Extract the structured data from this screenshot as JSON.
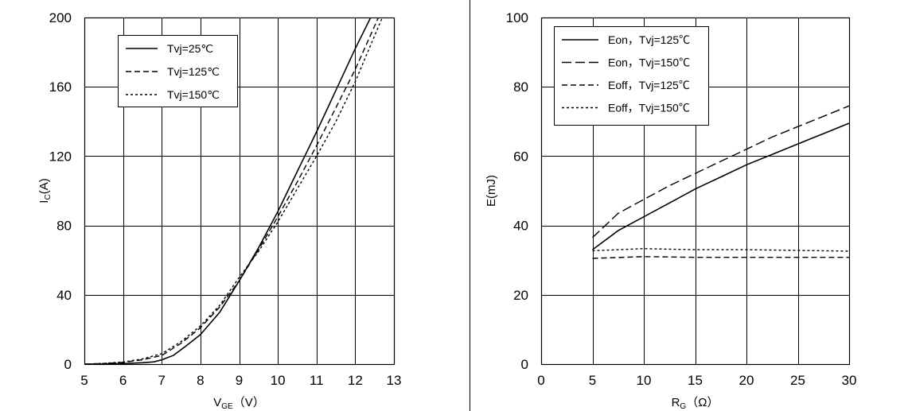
{
  "chart_data": [
    {
      "type": "line",
      "xlabel": "VGE（V）",
      "xlabel_main": "V",
      "xlabel_sub": "GE",
      "xlabel_unit": "（V）",
      "ylabel": "Ic(A)",
      "ylabel_main": "I",
      "ylabel_sub": "C",
      "ylabel_unit": "(A)",
      "xlim": [
        5,
        13
      ],
      "ylim": [
        0,
        200
      ],
      "xticks": [
        5,
        6,
        7,
        8,
        9,
        10,
        11,
        12,
        13
      ],
      "yticks": [
        0,
        40,
        80,
        120,
        160,
        200
      ],
      "grid": true,
      "legend_position": "top-left",
      "series": [
        {
          "name": "Tvj=25℃",
          "dash": "solid",
          "x": [
            5,
            5.5,
            6,
            6.5,
            6.8,
            7,
            7.3,
            7.6,
            8,
            8.5,
            9,
            9.5,
            10,
            10.5,
            11,
            11.5,
            12,
            12.4
          ],
          "y": [
            0,
            0,
            0.3,
            0.8,
            1.3,
            2.5,
            5,
            10,
            17,
            30,
            48,
            67,
            88,
            111,
            134,
            158,
            182,
            200
          ]
        },
        {
          "name": "Tvj=125℃",
          "dash": "dash",
          "x": [
            5,
            5.5,
            6,
            6.5,
            7,
            7.5,
            8,
            8.5,
            9,
            9.5,
            10,
            10.5,
            11,
            11.5,
            12,
            12.6
          ],
          "y": [
            0,
            0.3,
            1,
            2.5,
            5,
            12,
            21,
            33,
            48,
            66,
            85,
            105,
            126,
            148,
            170,
            200
          ]
        },
        {
          "name": "Tvj=150℃",
          "dash": "dot",
          "x": [
            5,
            5.5,
            6,
            6.5,
            7,
            7.5,
            8,
            8.5,
            9,
            9.5,
            10,
            10.5,
            11,
            11.5,
            12,
            12.7
          ],
          "y": [
            0,
            0.4,
            1.2,
            3,
            6,
            13,
            22,
            34,
            50,
            65,
            82,
            101,
            120,
            140,
            163,
            200
          ]
        }
      ]
    },
    {
      "type": "line",
      "xlabel": "RG（Ω）",
      "xlabel_main": "R",
      "xlabel_sub": "G",
      "xlabel_unit": "（Ω）",
      "ylabel": "E(mJ)",
      "xlim": [
        0,
        30
      ],
      "ylim": [
        0,
        100
      ],
      "xticks": [
        0,
        5,
        10,
        15,
        20,
        25,
        30
      ],
      "yticks": [
        0,
        20,
        40,
        60,
        80,
        100
      ],
      "grid": true,
      "legend_position": "top-left",
      "series": [
        {
          "name": "Eon，Tvj=125℃",
          "dash": "solid",
          "x": [
            5,
            7.5,
            10,
            12.5,
            15,
            17.5,
            20,
            22.5,
            25,
            27.5,
            30
          ],
          "y": [
            33,
            38.5,
            42.5,
            46.5,
            50.5,
            54,
            57.5,
            60.5,
            63.5,
            66.5,
            69.5
          ]
        },
        {
          "name": "Eon，Tvj=150℃",
          "dash": "longdash",
          "x": [
            5,
            7.5,
            10,
            12.5,
            15,
            17.5,
            20,
            22.5,
            25,
            27.5,
            30
          ],
          "y": [
            36.5,
            43.5,
            47.5,
            51.5,
            55,
            58.5,
            62,
            65.5,
            68.5,
            71.5,
            74.5
          ]
        },
        {
          "name": "Eoff，Tvj=125℃",
          "dash": "dash",
          "x": [
            5,
            10,
            15,
            20,
            25,
            30
          ],
          "y": [
            30.5,
            31,
            30.8,
            30.8,
            30.8,
            30.8
          ]
        },
        {
          "name": "Eoff，Tvj=150℃",
          "dash": "dot",
          "x": [
            5,
            10,
            15,
            20,
            25,
            30
          ],
          "y": [
            32.7,
            33.3,
            33,
            33,
            32.8,
            32.6
          ]
        }
      ]
    }
  ]
}
